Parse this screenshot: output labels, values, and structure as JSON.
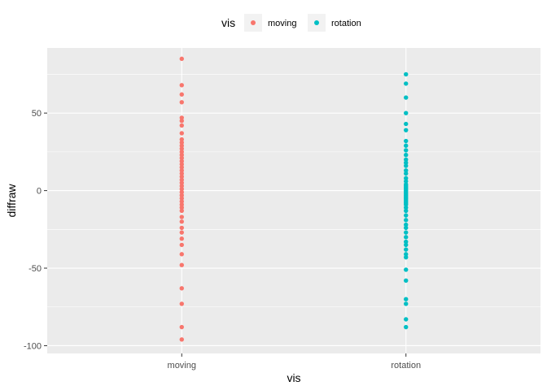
{
  "chart_data": {
    "type": "scatter",
    "xlabel": "vis",
    "ylabel": "diffraw",
    "categories": [
      "moving",
      "rotation"
    ],
    "ylim": [
      -105,
      92
    ],
    "y_ticks": [
      -100,
      -50,
      0,
      50
    ],
    "y_tick_labels": [
      "-100",
      "-50",
      "0",
      "50"
    ],
    "grid": true,
    "legend": {
      "title": "vis",
      "position": "top",
      "entries": [
        "moving",
        "rotation"
      ]
    },
    "colors": {
      "moving": "#F8766D",
      "rotation": "#00BFC4",
      "panel": "#EBEBEB",
      "grid": "#FFFFFF",
      "legend_key_bg": "#F2F2F2"
    },
    "series": [
      {
        "name": "moving",
        "x": "moving",
        "values": [
          85,
          68,
          62,
          57,
          47,
          45,
          42,
          37,
          33,
          31,
          29,
          27,
          25,
          23,
          21,
          19,
          17,
          15,
          13,
          11,
          9,
          7,
          5,
          3,
          1,
          -1,
          -3,
          -5,
          -7,
          -9,
          -11,
          -13,
          -17,
          -20,
          -24,
          -27,
          -31,
          -35,
          -41,
          -48,
          -63,
          -73,
          -88,
          -96
        ]
      },
      {
        "name": "rotation",
        "x": "rotation",
        "values": [
          75,
          69,
          60,
          50,
          43,
          39,
          32,
          29,
          26,
          23,
          20,
          18,
          16,
          13,
          11,
          8,
          6,
          4,
          3,
          2,
          1,
          0,
          -1,
          -2,
          -3,
          -4,
          -5,
          -6,
          -7,
          -8,
          -9,
          -11,
          -13,
          -16,
          -19,
          -22,
          -24,
          -27,
          -30,
          -33,
          -35,
          -38,
          -41,
          -43,
          -51,
          -58,
          -70,
          -73,
          -83,
          -88
        ]
      }
    ]
  }
}
